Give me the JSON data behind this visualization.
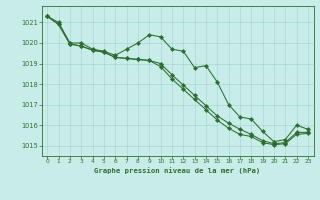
{
  "title": "Graphe pression niveau de la mer (hPa)",
  "background_color": "#c8ece8",
  "grid_color": "#a8d8d4",
  "line_color": "#2d6e2d",
  "ylim": [
    1014.5,
    1021.8
  ],
  "xlim": [
    -0.5,
    23.5
  ],
  "yticks": [
    1015,
    1016,
    1017,
    1018,
    1019,
    1020,
    1021
  ],
  "xticks": [
    0,
    1,
    2,
    3,
    4,
    5,
    6,
    7,
    8,
    9,
    10,
    11,
    12,
    13,
    14,
    15,
    16,
    17,
    18,
    19,
    20,
    21,
    22,
    23
  ],
  "series1": [
    1021.3,
    1021.0,
    1020.0,
    1020.0,
    1019.7,
    1019.6,
    1019.4,
    1019.7,
    1020.0,
    1020.4,
    1020.3,
    1019.7,
    1019.6,
    1018.8,
    1018.9,
    1018.1,
    1017.0,
    1016.4,
    1016.3,
    1015.7,
    1015.2,
    1015.3,
    1016.0,
    1015.8
  ],
  "series2": [
    1021.3,
    1020.9,
    1019.95,
    1019.85,
    1019.65,
    1019.55,
    1019.3,
    1019.25,
    1019.2,
    1019.15,
    1019.0,
    1018.45,
    1017.95,
    1017.45,
    1016.95,
    1016.45,
    1016.1,
    1015.8,
    1015.55,
    1015.25,
    1015.1,
    1015.15,
    1015.65,
    1015.65
  ],
  "series3": [
    1021.3,
    1020.9,
    1019.95,
    1019.85,
    1019.65,
    1019.55,
    1019.3,
    1019.25,
    1019.2,
    1019.15,
    1018.85,
    1018.25,
    1017.75,
    1017.25,
    1016.75,
    1016.25,
    1015.85,
    1015.55,
    1015.45,
    1015.15,
    1015.05,
    1015.1,
    1015.55,
    1015.6
  ]
}
